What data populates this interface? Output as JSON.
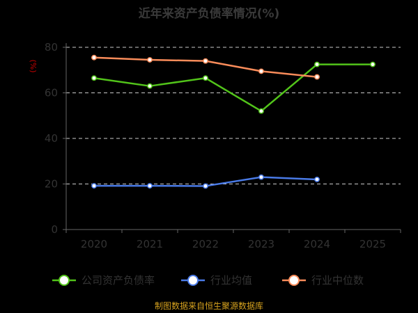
{
  "chart_data": {
    "type": "line",
    "title": "近年来资产负债率情况(%)",
    "ylabel": "(%)",
    "xlabel": "",
    "categories": [
      "2020",
      "2021",
      "2022",
      "2023",
      "2024",
      "2025"
    ],
    "ylim": [
      0,
      80
    ],
    "yticks": [
      0,
      20,
      40,
      60,
      80
    ],
    "grid": "horizontal-dashed",
    "legend_position": "bottom",
    "series": [
      {
        "name": "公司资产负债率",
        "color": "#52c41a",
        "values": [
          66.5,
          63,
          66.5,
          52,
          72.5,
          72.5
        ]
      },
      {
        "name": "行业均值",
        "color": "#4a7be8",
        "values": [
          19.2,
          19.2,
          19.1,
          23,
          22,
          null
        ]
      },
      {
        "name": "行业中位数",
        "color": "#fa8c5a",
        "values": [
          75.5,
          74.5,
          74,
          69.5,
          67,
          null
        ]
      }
    ],
    "source": "制图数据来自恒生聚源数据库"
  }
}
